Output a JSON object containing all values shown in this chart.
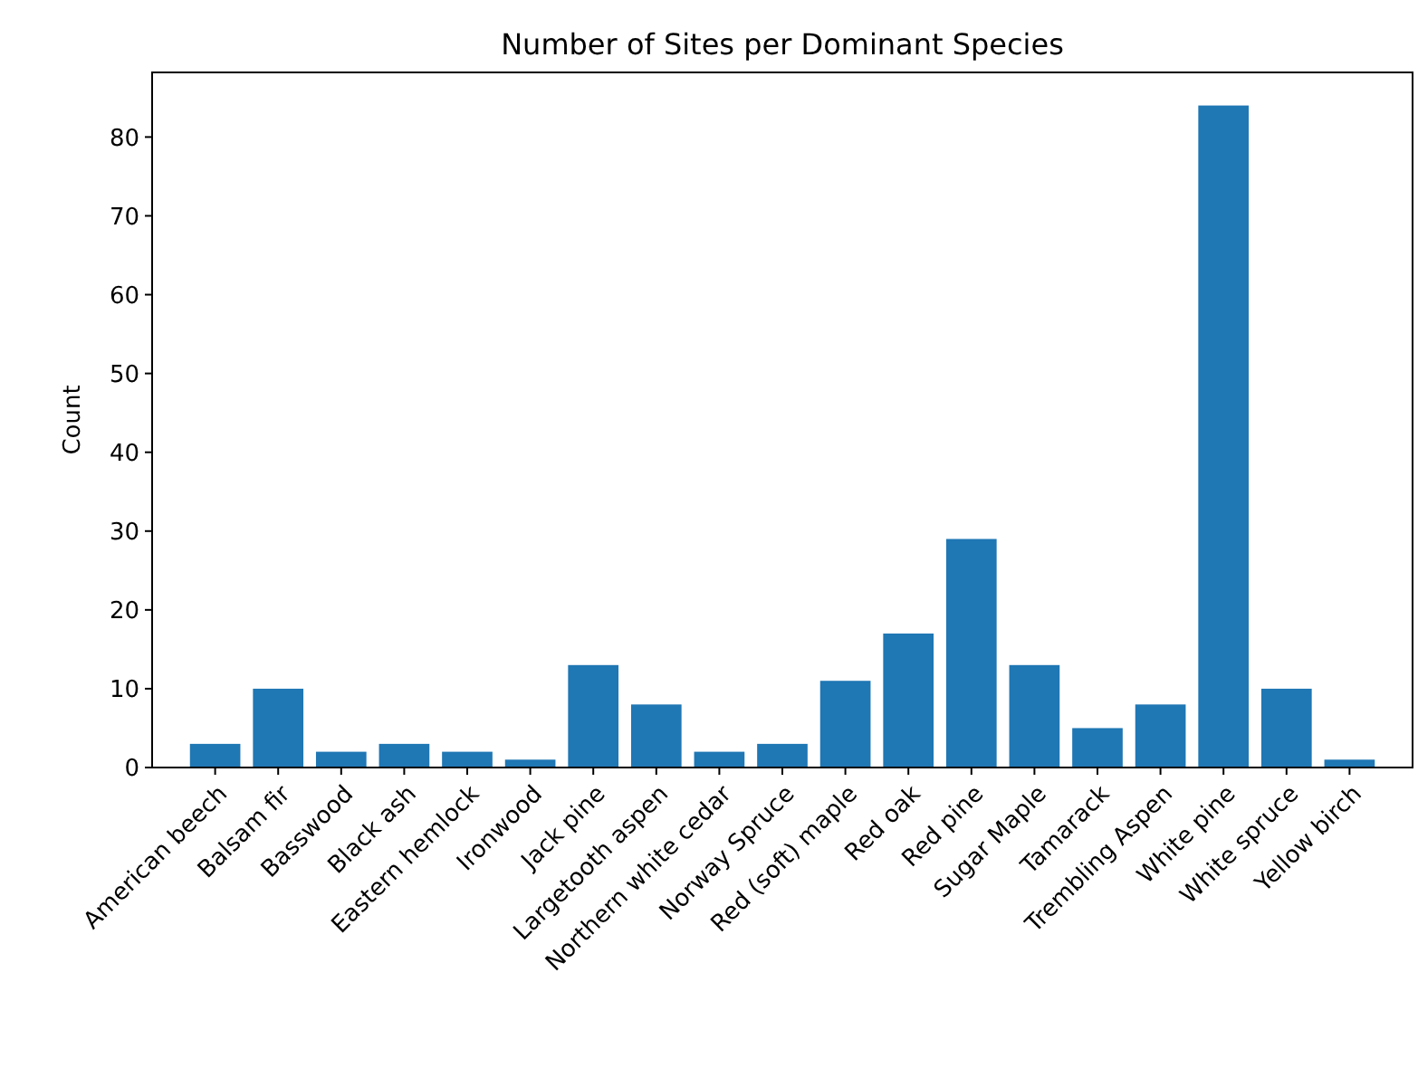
{
  "chart_data": {
    "type": "bar",
    "title": "Number of Sites per Dominant Species",
    "ylabel": "Count",
    "categories": [
      "American beech",
      "Balsam fir",
      "Basswood",
      "Black ash",
      "Eastern hemlock",
      "Ironwood",
      "Jack pine",
      "Largetooth aspen",
      "Northern white cedar",
      "Norway Spruce",
      "Red (soft) maple",
      "Red oak",
      "Red pine",
      "Sugar Maple",
      "Tamarack",
      "Trembling Aspen",
      "White pine",
      "White spruce",
      "Yellow birch"
    ],
    "values": [
      3,
      10,
      2,
      3,
      2,
      1,
      13,
      8,
      2,
      3,
      11,
      17,
      29,
      13,
      5,
      8,
      84,
      10,
      1
    ],
    "color": "#1f77b4",
    "ylim": [
      0,
      88.2
    ],
    "yticks": [
      0,
      10,
      20,
      30,
      40,
      50,
      60,
      70,
      80
    ],
    "grid": false
  }
}
